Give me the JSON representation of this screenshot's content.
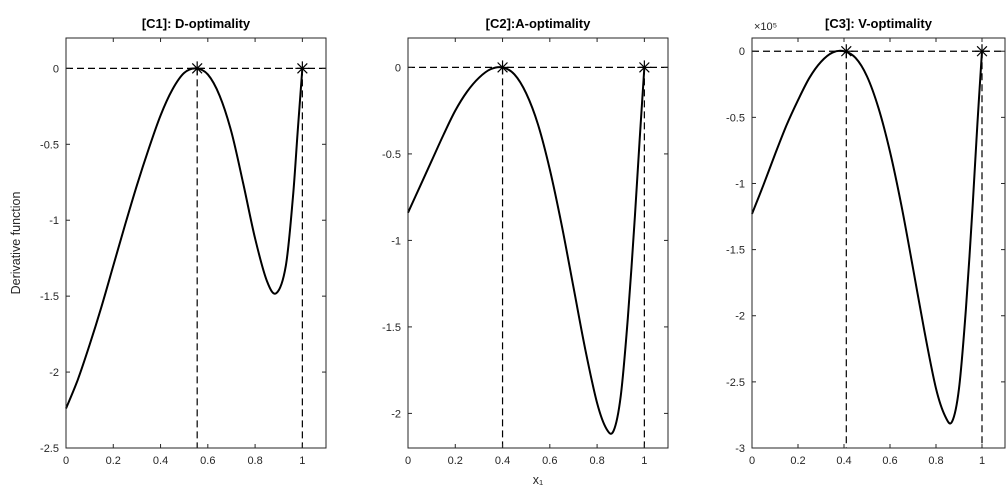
{
  "chart_data": [
    {
      "type": "line",
      "title": "[C1]: D-optimality",
      "ylabel": "Derivative function",
      "xlabel": "",
      "xlim": [
        0,
        1.1
      ],
      "ylim": [
        -2.5,
        0.2
      ],
      "xticks": [
        0,
        0.2,
        0.4,
        0.6,
        0.8,
        1
      ],
      "xtick_labels": [
        "0",
        "0.2",
        "0.4",
        "0.6",
        "0.8",
        "1"
      ],
      "yticks": [
        -2.5,
        -2,
        -1.5,
        -1,
        -0.5,
        0
      ],
      "ytick_labels": [
        "-2.5",
        "-2",
        "-1.5",
        "-1",
        "-0.5",
        "0"
      ],
      "exponent": "",
      "grid": false,
      "series": [
        {
          "x": [
            0,
            0.05,
            0.1,
            0.15,
            0.2,
            0.25,
            0.3,
            0.35,
            0.4,
            0.45,
            0.5,
            0.55,
            0.6,
            0.65,
            0.7,
            0.75,
            0.8,
            0.85,
            0.89,
            0.93,
            0.96,
            0.98,
            1.0
          ],
          "y": [
            -2.24,
            -2.05,
            -1.82,
            -1.57,
            -1.3,
            -1.03,
            -0.77,
            -0.53,
            -0.31,
            -0.14,
            -0.03,
            0.0,
            -0.04,
            -0.18,
            -0.42,
            -0.76,
            -1.12,
            -1.4,
            -1.48,
            -1.3,
            -0.85,
            -0.42,
            0.0
          ]
        }
      ],
      "support_points": [
        0.555,
        1.0
      ]
    },
    {
      "type": "line",
      "title": "[C2]:A-optimality",
      "ylabel": "",
      "xlabel": "x₁",
      "xlim": [
        0,
        1.1
      ],
      "ylim": [
        -2.2,
        0.17
      ],
      "xticks": [
        0,
        0.2,
        0.4,
        0.6,
        0.8,
        1
      ],
      "xtick_labels": [
        "0",
        "0.2",
        "0.4",
        "0.6",
        "0.8",
        "1"
      ],
      "yticks": [
        -2,
        -1.5,
        -1,
        -0.5,
        0
      ],
      "ytick_labels": [
        "-2",
        "-1.5",
        "-1",
        "-0.5",
        "0"
      ],
      "exponent": "",
      "grid": false,
      "series": [
        {
          "x": [
            0,
            0.05,
            0.1,
            0.15,
            0.2,
            0.25,
            0.3,
            0.35,
            0.4,
            0.45,
            0.5,
            0.55,
            0.6,
            0.65,
            0.7,
            0.75,
            0.8,
            0.84,
            0.87,
            0.9,
            0.93,
            0.96,
            0.98,
            1.0
          ],
          "y": [
            -0.84,
            -0.69,
            -0.54,
            -0.39,
            -0.25,
            -0.14,
            -0.06,
            -0.01,
            0.0,
            -0.04,
            -0.15,
            -0.33,
            -0.59,
            -0.91,
            -1.27,
            -1.63,
            -1.94,
            -2.09,
            -2.1,
            -1.9,
            -1.45,
            -0.86,
            -0.42,
            0.0
          ]
        }
      ],
      "support_points": [
        0.4,
        1.0
      ]
    },
    {
      "type": "line",
      "title": "[C3]: V-optimality",
      "ylabel": "",
      "xlabel": "",
      "xlim": [
        0,
        1.1
      ],
      "ylim": [
        -3,
        0.1
      ],
      "xticks": [
        0,
        0.2,
        0.4,
        0.6,
        0.8,
        1
      ],
      "xtick_labels": [
        "0",
        "0.2",
        "0.4",
        "0.6",
        "0.8",
        "1"
      ],
      "yticks": [
        -3,
        -2.5,
        -2,
        -1.5,
        -1,
        -0.5,
        0
      ],
      "ytick_labels": [
        "-3",
        "-2.5",
        "-2",
        "-1.5",
        "-1",
        "-0.5",
        "0"
      ],
      "exponent": "×10⁵",
      "grid": false,
      "series": [
        {
          "x": [
            0,
            0.05,
            0.1,
            0.15,
            0.2,
            0.25,
            0.3,
            0.35,
            0.4,
            0.45,
            0.5,
            0.55,
            0.6,
            0.65,
            0.7,
            0.75,
            0.8,
            0.84,
            0.87,
            0.9,
            0.93,
            0.96,
            0.98,
            1.0
          ],
          "y": [
            -1.23,
            -1.01,
            -0.78,
            -0.56,
            -0.37,
            -0.2,
            -0.08,
            -0.01,
            0.0,
            -0.05,
            -0.19,
            -0.43,
            -0.76,
            -1.17,
            -1.64,
            -2.12,
            -2.55,
            -2.76,
            -2.8,
            -2.55,
            -1.95,
            -1.15,
            -0.55,
            0.0
          ]
        }
      ],
      "support_points": [
        0.41,
        1.0
      ]
    }
  ]
}
